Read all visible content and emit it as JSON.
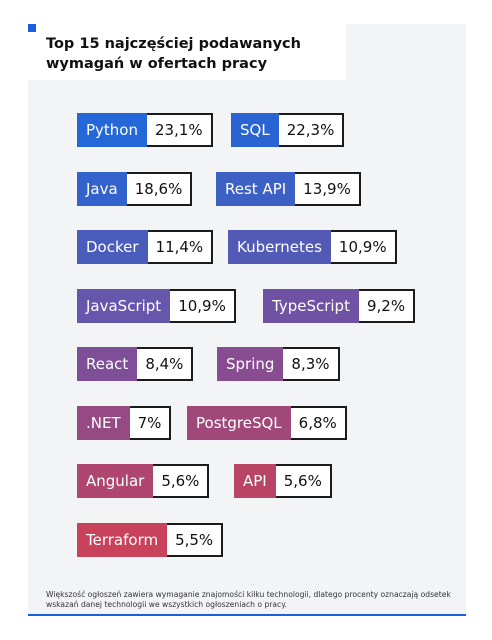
{
  "chart_data": {
    "type": "table",
    "title": "Top 15 najczęściej podawanych wymagań w ofertach pracy",
    "items": [
      {
        "name": "Python",
        "value": "23,1%",
        "color": "#2467d8"
      },
      {
        "name": "SQL",
        "value": "22,3%",
        "color": "#2a64d2"
      },
      {
        "name": "Java",
        "value": "18,6%",
        "color": "#3462cc"
      },
      {
        "name": "Rest API",
        "value": "13,9%",
        "color": "#3c60c4"
      },
      {
        "name": "Docker",
        "value": "11,4%",
        "color": "#4a5cbc"
      },
      {
        "name": "Kubernetes",
        "value": "10,9%",
        "color": "#525ab6"
      },
      {
        "name": "JavaScript",
        "value": "10,9%",
        "color": "#6656ac"
      },
      {
        "name": "TypeScript",
        "value": "9,2%",
        "color": "#7052a4"
      },
      {
        "name": "React",
        "value": "8,4%",
        "color": "#7f4e98"
      },
      {
        "name": "Spring",
        "value": "8,3%",
        "color": "#884c90"
      },
      {
        "name": ".NET",
        "value": "7%",
        "color": "#964a84"
      },
      {
        "name": "PostgreSQL",
        "value": "6,8%",
        "color": "#a0487a"
      },
      {
        "name": "Angular",
        "value": "5,6%",
        "color": "#ae4670"
      },
      {
        "name": "API",
        "value": "5,6%",
        "color": "#b84466"
      },
      {
        "name": "Terraform",
        "value": "5,5%",
        "color": "#c8425c"
      }
    ],
    "footnote": "Większość ogłoszeń zawiera wymaganie znajomości kilku technologii, dlatego procenty oznaczają odsetek wskazań danej technologii we wszystkich ogłoszeniach o pracy.",
    "accent_color": "#1a5fe0"
  }
}
